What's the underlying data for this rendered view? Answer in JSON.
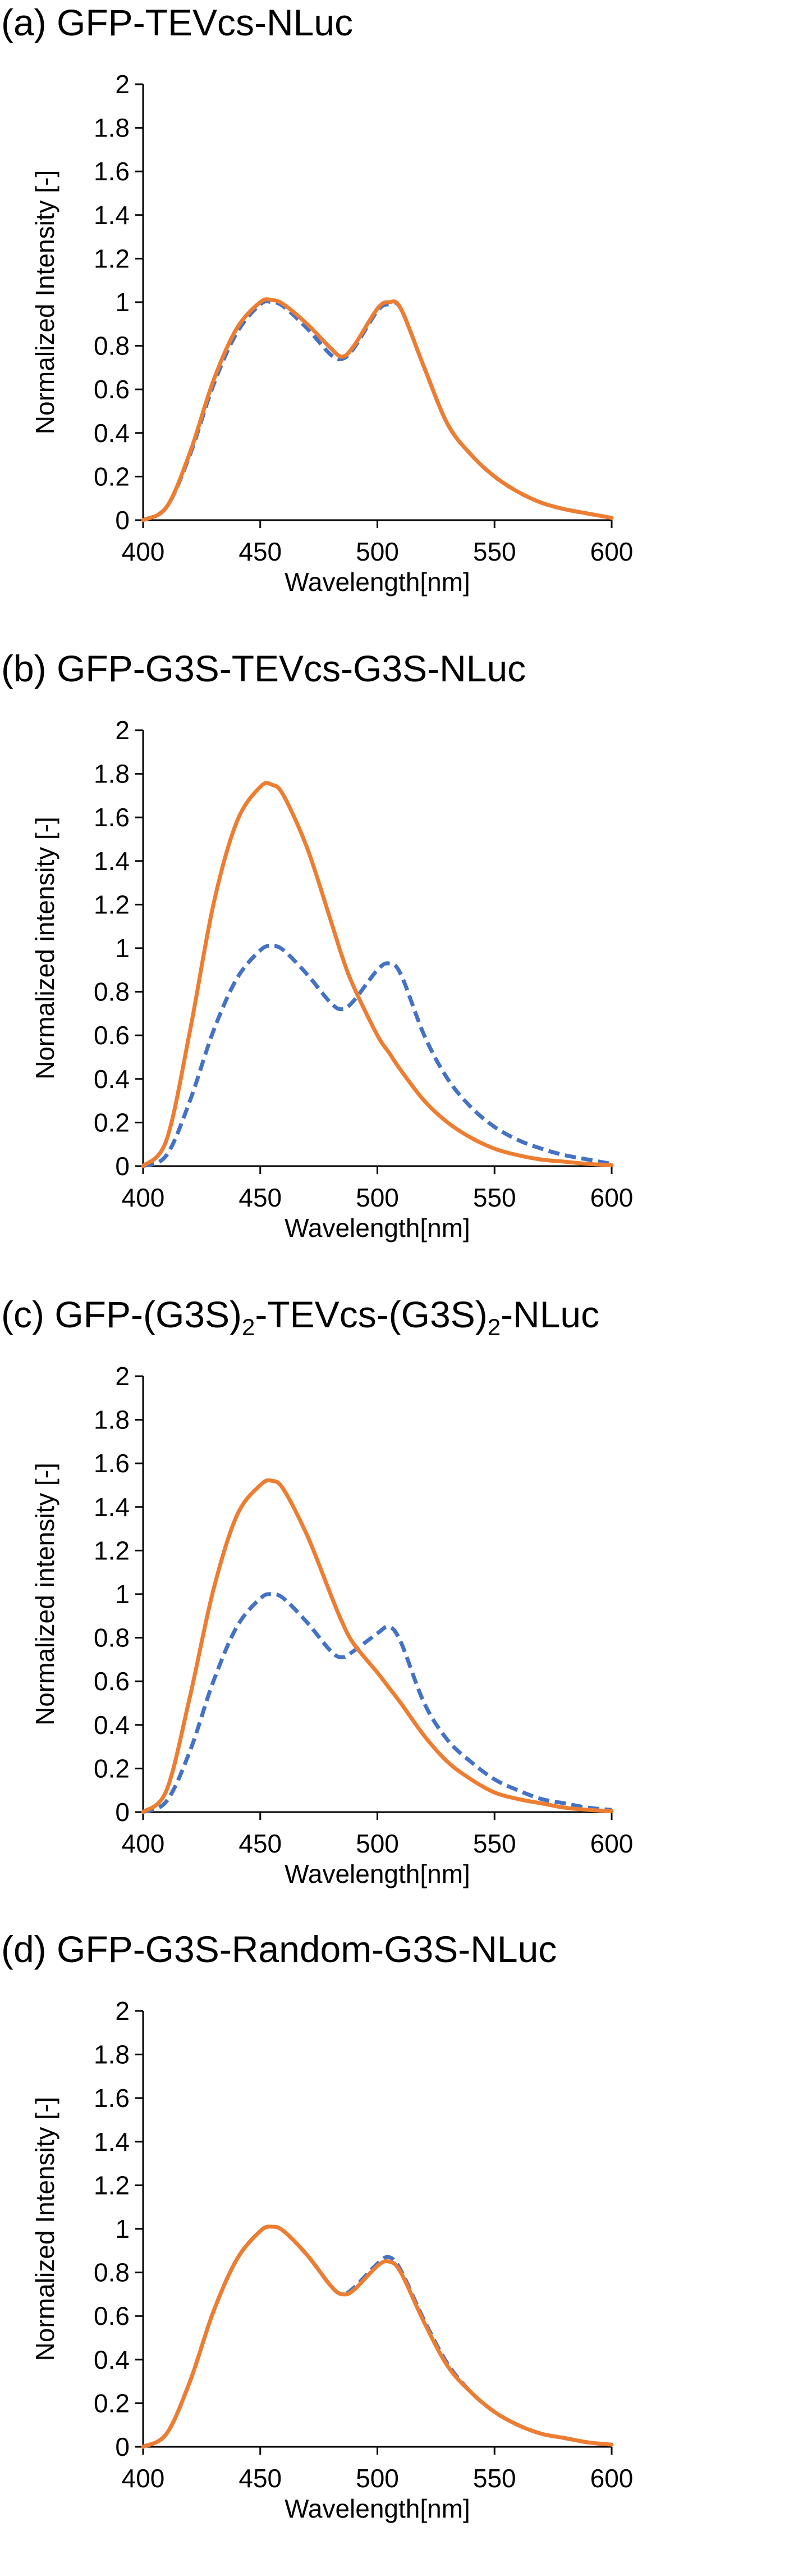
{
  "chart_data": [
    {
      "type": "line",
      "panel_label": "(a)",
      "title": "GFP-TEVcs-NLuc",
      "xlabel": "Wavelength[nm]",
      "ylabel": "Normalized Intensity [-]",
      "xlim": [
        400,
        600
      ],
      "ylim": [
        0,
        2
      ],
      "x_ticks": [
        "400",
        "450",
        "500",
        "550",
        "600"
      ],
      "y_ticks": [
        "0",
        "0.2",
        "0.4",
        "0.6",
        "0.8",
        "1",
        "1.2",
        "1.4",
        "1.6",
        "1.8",
        "2"
      ],
      "grid": false,
      "x": [
        400,
        410,
        420,
        430,
        440,
        450,
        455,
        460,
        470,
        480,
        485,
        490,
        500,
        505,
        510,
        520,
        530,
        540,
        550,
        560,
        570,
        580,
        590,
        600
      ],
      "series": [
        {
          "name": "dashed",
          "style": "dashed",
          "color": "#4472C4",
          "values": [
            0,
            0.06,
            0.3,
            0.62,
            0.86,
            0.99,
            1.0,
            0.98,
            0.88,
            0.76,
            0.74,
            0.79,
            0.96,
            0.99,
            0.97,
            0.7,
            0.44,
            0.3,
            0.2,
            0.13,
            0.08,
            0.05,
            0.03,
            0.01
          ]
        },
        {
          "name": "solid",
          "style": "solid",
          "color": "#ED7D31",
          "values": [
            0,
            0.06,
            0.31,
            0.64,
            0.88,
            1.0,
            1.01,
            0.99,
            0.9,
            0.79,
            0.75,
            0.8,
            0.97,
            1.0,
            0.97,
            0.7,
            0.44,
            0.3,
            0.2,
            0.13,
            0.08,
            0.05,
            0.03,
            0.01
          ]
        }
      ]
    },
    {
      "type": "line",
      "panel_label": "(b)",
      "title": "GFP-G3S-TEVcs-G3S-NLuc",
      "xlabel": "Wavelength[nm]",
      "ylabel": "Normalized intensity [-]",
      "xlim": [
        400,
        600
      ],
      "ylim": [
        0,
        2
      ],
      "x_ticks": [
        "400",
        "450",
        "500",
        "550",
        "600"
      ],
      "y_ticks": [
        "0",
        "0.2",
        "0.4",
        "0.6",
        "0.8",
        "1",
        "1.2",
        "1.4",
        "1.6",
        "1.8",
        "2"
      ],
      "grid": false,
      "x": [
        400,
        410,
        420,
        430,
        440,
        450,
        455,
        460,
        470,
        480,
        485,
        490,
        500,
        505,
        510,
        520,
        530,
        540,
        550,
        560,
        570,
        580,
        590,
        600
      ],
      "series": [
        {
          "name": "dashed",
          "style": "dashed",
          "color": "#4472C4",
          "values": [
            0,
            0.05,
            0.3,
            0.62,
            0.86,
            0.99,
            1.01,
            0.99,
            0.88,
            0.75,
            0.72,
            0.76,
            0.9,
            0.93,
            0.88,
            0.6,
            0.4,
            0.27,
            0.18,
            0.12,
            0.08,
            0.05,
            0.03,
            0.01
          ]
        },
        {
          "name": "solid",
          "style": "solid",
          "color": "#ED7D31",
          "values": [
            0,
            0.12,
            0.62,
            1.2,
            1.58,
            1.74,
            1.75,
            1.7,
            1.46,
            1.13,
            0.96,
            0.82,
            0.6,
            0.52,
            0.44,
            0.3,
            0.2,
            0.13,
            0.08,
            0.05,
            0.03,
            0.02,
            0.01,
            0.005
          ]
        }
      ]
    },
    {
      "type": "line",
      "panel_label": "(c)",
      "title_parts": [
        "GFP-(G3S)",
        "2",
        "-TEVcs-(G3S)",
        "2",
        "-NLuc"
      ],
      "xlabel": "Wavelength[nm]",
      "ylabel": "Normalized intensity [-]",
      "xlim": [
        400,
        600
      ],
      "ylim": [
        0,
        2
      ],
      "x_ticks": [
        "400",
        "450",
        "500",
        "550",
        "600"
      ],
      "y_ticks": [
        "0",
        "0.2",
        "0.4",
        "0.6",
        "0.8",
        "1",
        "1.2",
        "1.4",
        "1.6",
        "1.8",
        "2"
      ],
      "grid": false,
      "x": [
        400,
        410,
        420,
        430,
        440,
        450,
        455,
        460,
        470,
        480,
        485,
        490,
        500,
        505,
        510,
        520,
        530,
        540,
        550,
        560,
        570,
        580,
        590,
        600
      ],
      "series": [
        {
          "name": "dashed",
          "style": "dashed",
          "color": "#4472C4",
          "values": [
            0,
            0.05,
            0.28,
            0.6,
            0.85,
            0.98,
            1.0,
            0.98,
            0.87,
            0.74,
            0.71,
            0.74,
            0.82,
            0.85,
            0.78,
            0.5,
            0.33,
            0.23,
            0.15,
            0.1,
            0.06,
            0.04,
            0.02,
            0.01
          ]
        },
        {
          "name": "solid",
          "style": "solid",
          "color": "#ED7D31",
          "values": [
            0,
            0.1,
            0.53,
            1.02,
            1.36,
            1.5,
            1.52,
            1.48,
            1.27,
            1.0,
            0.87,
            0.77,
            0.64,
            0.57,
            0.5,
            0.35,
            0.23,
            0.15,
            0.09,
            0.06,
            0.04,
            0.02,
            0.01,
            0.005
          ]
        }
      ]
    },
    {
      "type": "line",
      "panel_label": "(d)",
      "title": "GFP-G3S-Random-G3S-NLuc",
      "xlabel": "Wavelength[nm]",
      "ylabel": "Normalized Intensity [-]",
      "xlim": [
        400,
        600
      ],
      "ylim": [
        0,
        2
      ],
      "x_ticks": [
        "400",
        "450",
        "500",
        "550",
        "600"
      ],
      "y_ticks": [
        "0",
        "0.2",
        "0.4",
        "0.6",
        "0.8",
        "1",
        "1.2",
        "1.4",
        "1.6",
        "1.8",
        "2"
      ],
      "grid": false,
      "x": [
        400,
        410,
        420,
        430,
        440,
        450,
        455,
        460,
        470,
        480,
        485,
        490,
        500,
        505,
        510,
        520,
        530,
        540,
        550,
        560,
        570,
        580,
        590,
        600
      ],
      "series": [
        {
          "name": "dashed",
          "style": "dashed",
          "color": "#4472C4",
          "values": [
            0,
            0.06,
            0.3,
            0.62,
            0.86,
            0.99,
            1.01,
            0.99,
            0.88,
            0.74,
            0.7,
            0.73,
            0.84,
            0.87,
            0.81,
            0.58,
            0.38,
            0.25,
            0.16,
            0.1,
            0.06,
            0.04,
            0.02,
            0.01
          ]
        },
        {
          "name": "solid",
          "style": "solid",
          "color": "#ED7D31",
          "values": [
            0,
            0.06,
            0.3,
            0.62,
            0.86,
            0.99,
            1.01,
            0.99,
            0.88,
            0.74,
            0.7,
            0.72,
            0.83,
            0.85,
            0.8,
            0.57,
            0.37,
            0.25,
            0.16,
            0.1,
            0.06,
            0.04,
            0.02,
            0.01
          ]
        }
      ]
    }
  ]
}
